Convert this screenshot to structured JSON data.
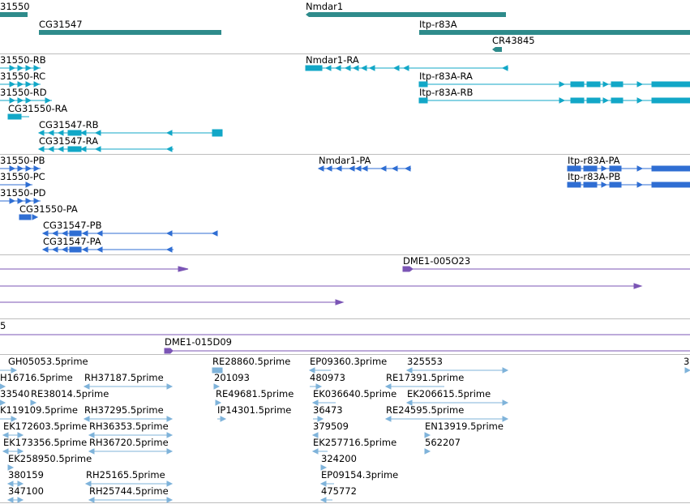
{
  "colors": {
    "gene": "#2e8b8b",
    "transcript": "#12a7c7",
    "protein": "#2f6ed3",
    "clone": "#7b55b5",
    "est": "#7fb3da",
    "divider": "#bdbdbd"
  },
  "genes": [
    "31550",
    "CG31547",
    "Nmdar1",
    "Itp-r83A",
    "CR43845"
  ],
  "transcripts": [
    "31550-RB",
    "31550-RC",
    "31550-RD",
    "CG31550-RA",
    "CG31547-RB",
    "CG31547-RA",
    "Nmdar1-RA",
    "Itp-r83A-RA",
    "Itp-r83A-RB"
  ],
  "proteins": [
    "31550-PB",
    "31550-PC",
    "31550-PD",
    "CG31550-PA",
    "CG31547-PB",
    "CG31547-PA",
    "Nmdar1-PA",
    "Itp-r83A-PA",
    "Itp-r83A-PB"
  ],
  "clones_a": [
    "DME1-005O23"
  ],
  "clones_b": [
    "5",
    "DME1-015D09"
  ],
  "ests": [
    "GH05053.5prime",
    "RE28860.5prime",
    "EP09360.3prime",
    "325553",
    "3",
    "H16716.5prime",
    "RH37187.5prime",
    "201093",
    "480973",
    "RE17391.5prime",
    "33540",
    "RE38014.5prime",
    "RE49681.5prime",
    "EK036640.5prime",
    "EK206615.5prime",
    "K119109.5prime",
    "RH37295.5prime",
    "IP14301.5prime",
    "36473",
    "RE24595.5prime",
    "EK172603.5prime",
    "RH36353.5prime",
    "379509",
    "EN13919.5prime",
    "EK173356.5prime",
    "RH36720.5prime",
    "EK257716.5prime",
    "562207",
    "EK258950.5prime",
    "324200",
    "380159",
    "RH25165.5prime",
    "EP09154.3prime",
    "347100",
    "RH25744.5prime",
    "475772"
  ]
}
